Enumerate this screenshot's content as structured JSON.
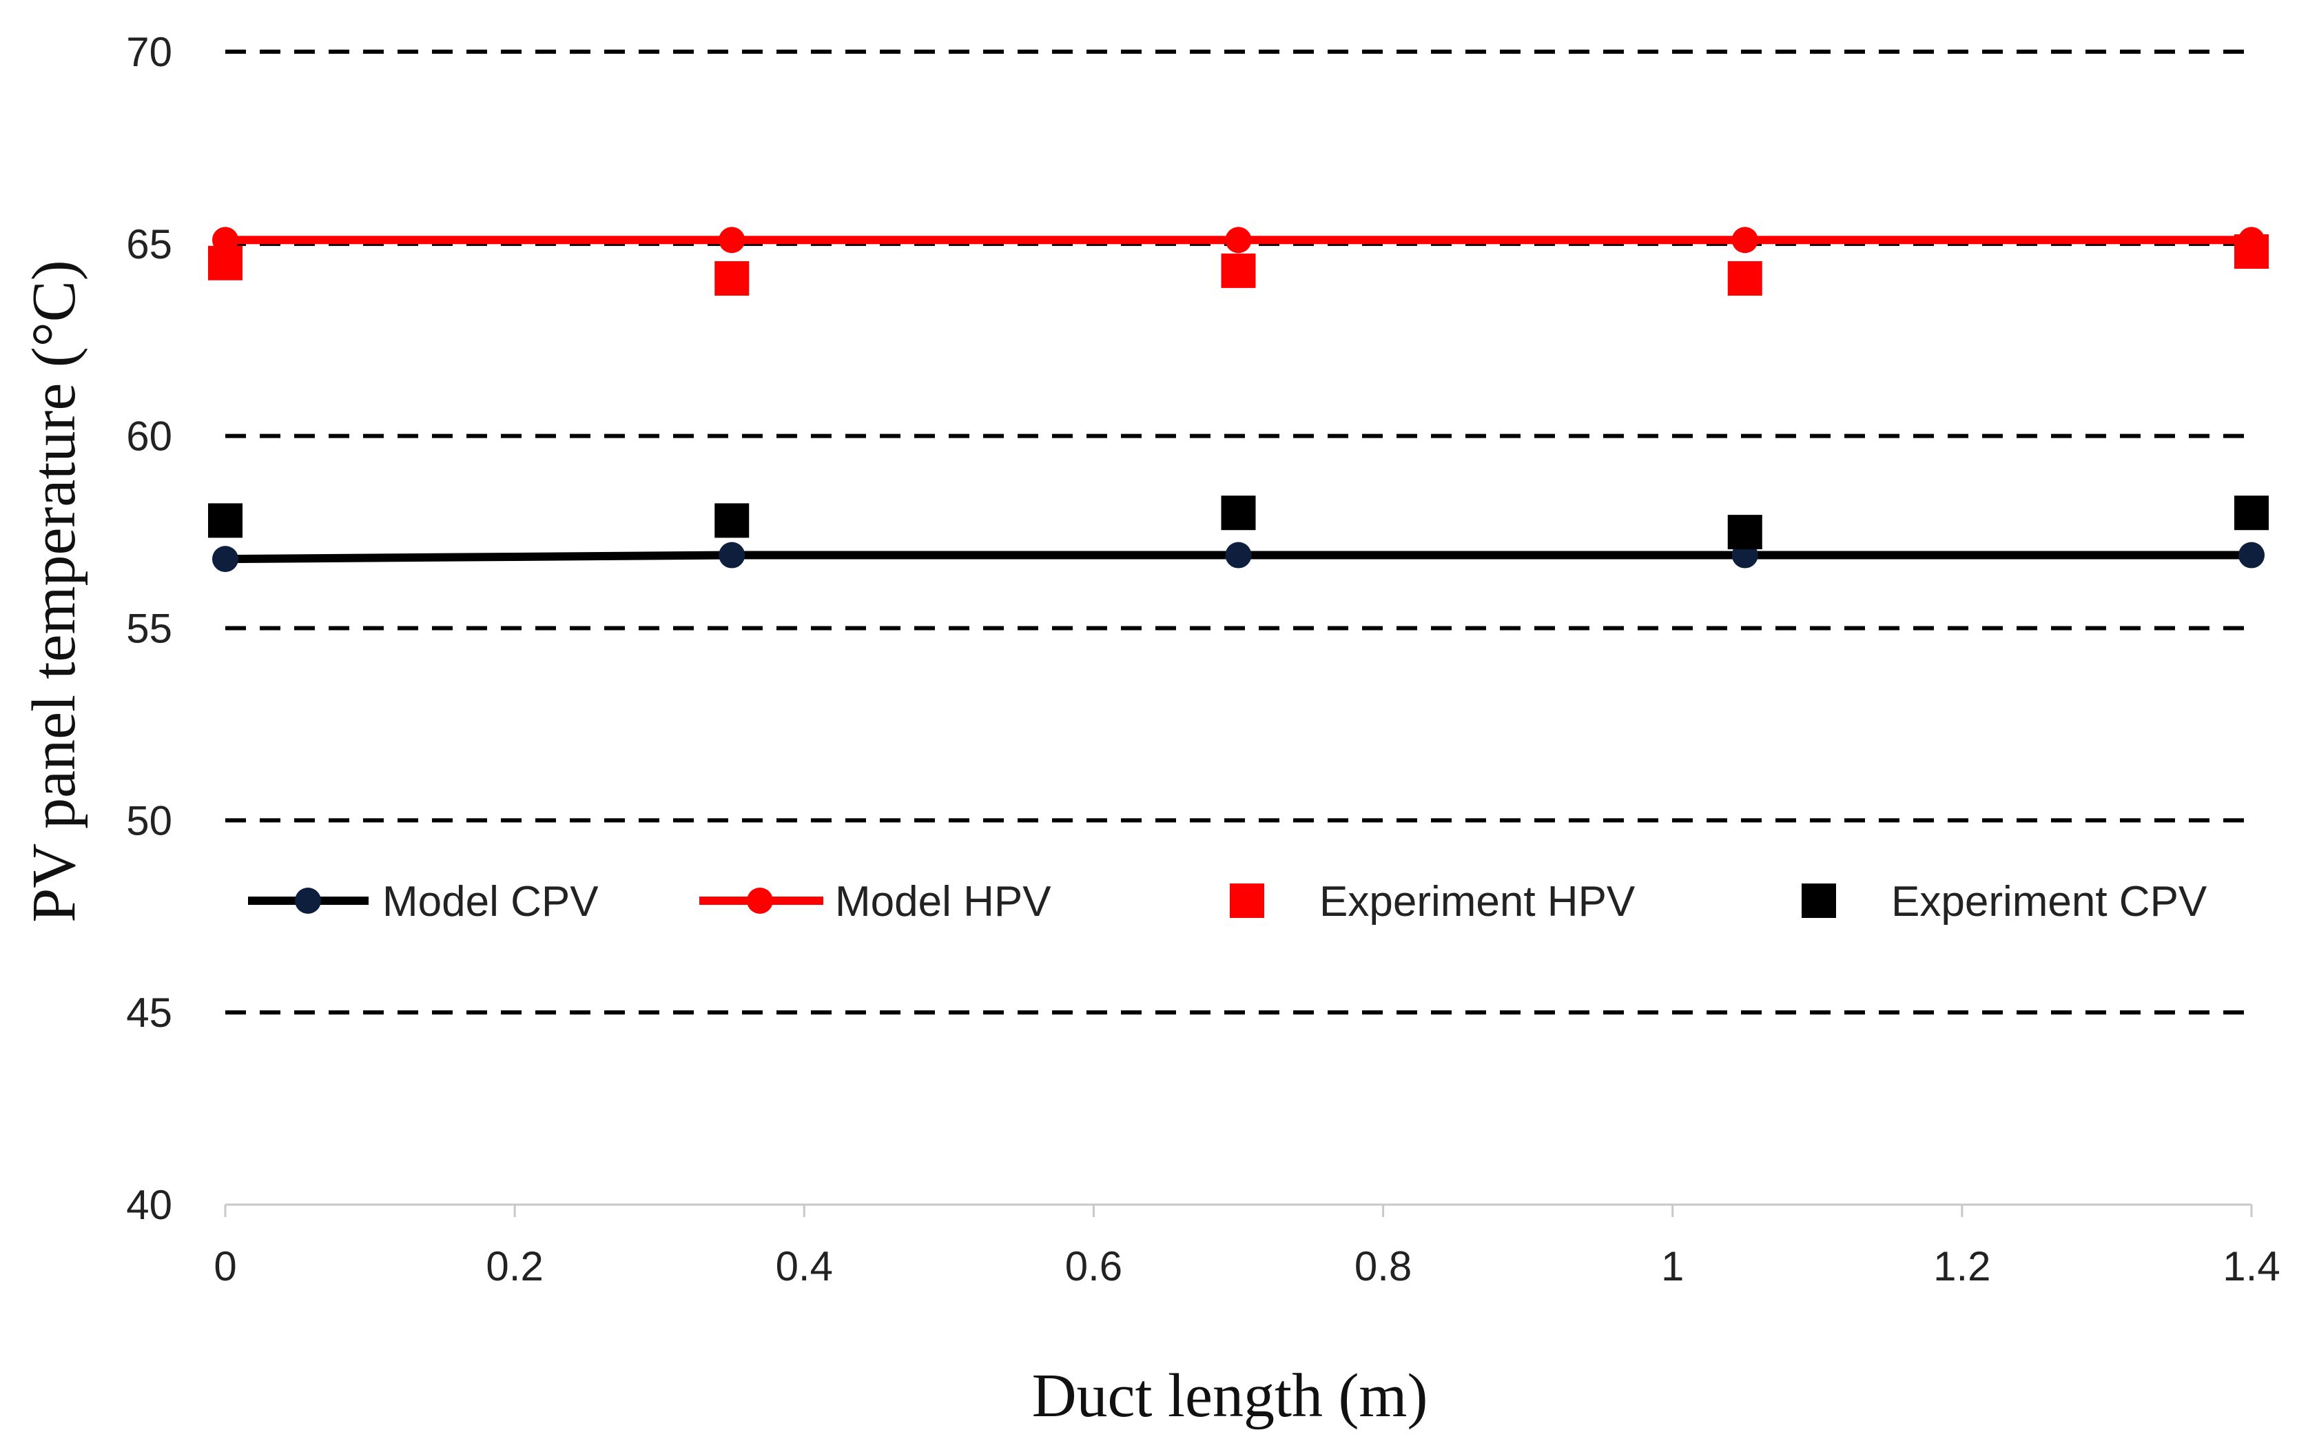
{
  "chart_data": {
    "type": "line",
    "title": "",
    "xlabel": "Duct length (m)",
    "ylabel": "PV panel temperature (°C)",
    "xlim": [
      0,
      1.4
    ],
    "ylim": [
      40,
      70
    ],
    "x_ticks": [
      0,
      0.2,
      0.4,
      0.6,
      0.8,
      1,
      1.2,
      1.4
    ],
    "x_tick_labels": [
      "0",
      "0.2",
      "0.4",
      "0.6",
      "0.8",
      "1",
      "1.2",
      "1.4"
    ],
    "y_ticks": [
      40,
      45,
      50,
      55,
      60,
      65,
      70
    ],
    "y_tick_labels": [
      "40",
      "45",
      "50",
      "55",
      "60",
      "65",
      "70"
    ],
    "grid": "horizontal dashed",
    "legend_position": "inside, lower-middle",
    "x": [
      0,
      0.35,
      0.7,
      1.05,
      1.4
    ],
    "series": [
      {
        "name": "Model CPV",
        "kind": "line-marker",
        "color": "#000000",
        "marker_color": "#0d1f3c",
        "values": [
          56.8,
          56.9,
          56.9,
          56.9,
          56.9
        ]
      },
      {
        "name": "Model  HPV",
        "kind": "line-marker",
        "color": "#ff0000",
        "marker_color": "#ff0000",
        "values": [
          65.1,
          65.1,
          65.1,
          65.1,
          65.1
        ]
      },
      {
        "name": "Experiment HPV",
        "kind": "square",
        "color": "#ff0000",
        "values": [
          64.5,
          64.1,
          64.3,
          64.1,
          64.8
        ]
      },
      {
        "name": "Experiment CPV",
        "kind": "square",
        "color": "#000000",
        "values": [
          57.8,
          57.8,
          58.0,
          57.5,
          58.0
        ]
      }
    ]
  }
}
